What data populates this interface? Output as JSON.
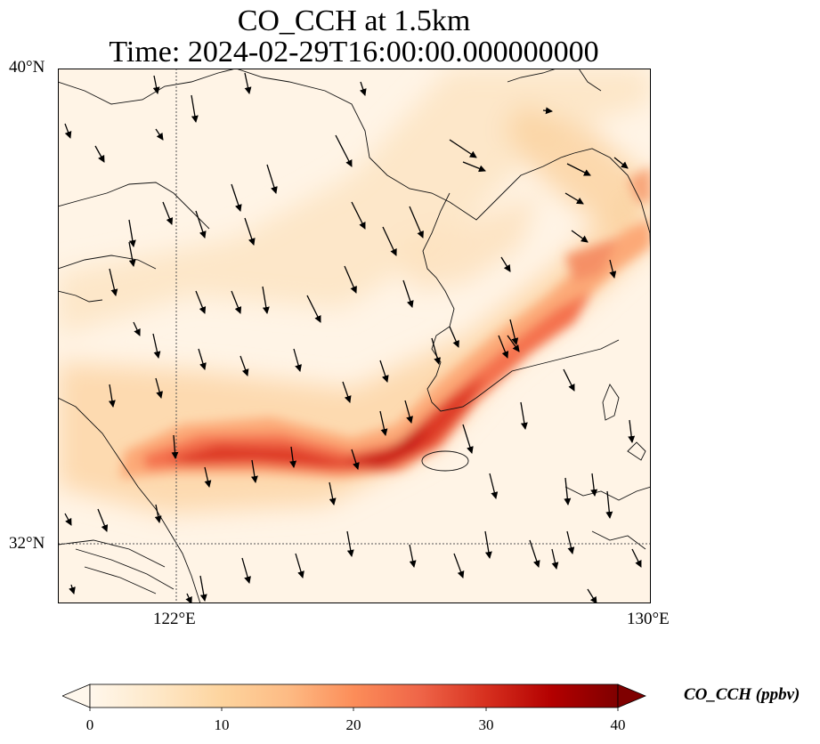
{
  "title": {
    "line1": "CO_CCH at 1.5km",
    "line2": "Time: 2024-02-29T16:00:00.000000000"
  },
  "map": {
    "variable": "CO_CCH",
    "level": "1.5km",
    "extent": {
      "lon": [
        120,
        130
      ],
      "lat": [
        31,
        40
      ]
    },
    "gridlines": {
      "lon": [
        122
      ],
      "lat": [
        32
      ],
      "style": "dotted",
      "color": "#555555"
    },
    "lon_ticks": [
      {
        "value": 122,
        "label": "122°E"
      },
      {
        "value": 130,
        "label": "130°E"
      }
    ],
    "lat_ticks": [
      {
        "value": 40,
        "label": "40°N"
      },
      {
        "value": 32,
        "label": "32°N"
      }
    ],
    "field_note_colormap": "OrRd",
    "plume": [
      {
        "lon": 121.2,
        "lat": 33.45,
        "value": 26
      },
      {
        "lon": 122.2,
        "lat": 33.5,
        "value": 28
      },
      {
        "lon": 123.3,
        "lat": 33.35,
        "value": 25
      },
      {
        "lon": 124.4,
        "lat": 33.35,
        "value": 27
      },
      {
        "lon": 125.2,
        "lat": 33.4,
        "value": 30
      },
      {
        "lon": 125.9,
        "lat": 34.0,
        "value": 27
      },
      {
        "lon": 126.6,
        "lat": 34.7,
        "value": 22
      },
      {
        "lon": 127.3,
        "lat": 35.3,
        "value": 18
      },
      {
        "lon": 128.0,
        "lat": 35.8,
        "value": 15
      },
      {
        "lon": 128.8,
        "lat": 36.5,
        "value": 13
      },
      {
        "lon": 129.6,
        "lat": 37.5,
        "value": 11
      }
    ],
    "wind_vectors_note": "arrows point predominantly south to south-southeast"
  },
  "colorbar": {
    "label": "CO_CCH (ppbv)",
    "min": 0,
    "max": 40,
    "ticks": [
      "0",
      "10",
      "20",
      "30",
      "40"
    ],
    "extend": "both",
    "colors": [
      "#fff7ec",
      "#fee8c8",
      "#fdd49e",
      "#fdbb84",
      "#fc8d59",
      "#ef6548",
      "#d7301f",
      "#b30000",
      "#7f0000"
    ]
  }
}
